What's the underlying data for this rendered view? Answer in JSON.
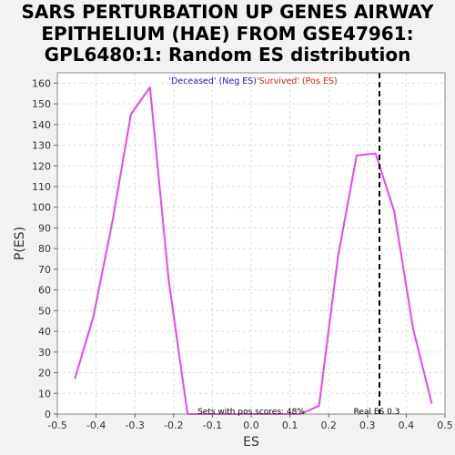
{
  "chart_data": {
    "type": "line",
    "title": [
      "SARS PERTURBATION UP GENES AIRWAY",
      "EPITHELIUM (HAE) FROM GSE47961:",
      "GPL6480:1: Random ES distribution"
    ],
    "xlabel": "ES",
    "ylabel": "P(ES)",
    "xlim": [
      -0.5,
      0.5
    ],
    "ylim": [
      0,
      165
    ],
    "xticks": [
      -0.5,
      -0.4,
      -0.3,
      -0.2,
      -0.1,
      0.0,
      0.1,
      0.2,
      0.3,
      0.4,
      0.5
    ],
    "xtick_labels": [
      "-0.5",
      "-0.4",
      "-0.3",
      "-0.2",
      "-0.1",
      "0.0",
      "0.1",
      "0.2",
      "0.3",
      "0.4",
      "0.5"
    ],
    "yticks": [
      0,
      10,
      20,
      30,
      40,
      50,
      60,
      70,
      80,
      90,
      100,
      110,
      120,
      130,
      140,
      150,
      160
    ],
    "ytick_labels": [
      "0",
      "10",
      "20",
      "30",
      "40",
      "50",
      "60",
      "70",
      "80",
      "90",
      "100",
      "110",
      "120",
      "130",
      "140",
      "150",
      "160"
    ],
    "grid": true,
    "series": [
      {
        "color": "#ee44ee",
        "x": [
          -0.455,
          -0.407,
          -0.358,
          -0.31,
          -0.261,
          -0.213,
          -0.164,
          0.127,
          0.175,
          0.224,
          0.272,
          0.321,
          0.369,
          0.418,
          0.466
        ],
        "y": [
          17,
          47,
          93,
          145,
          158,
          65,
          0,
          0,
          4,
          76,
          125,
          126,
          98,
          41,
          5
        ]
      }
    ],
    "real_es": 0.331,
    "legend": [
      {
        "text": "'Deceased' (Neg ES)",
        "color": "#2222bb"
      },
      {
        "text": "'Survived' (Pos ES)",
        "color": "#dd2222"
      }
    ],
    "annotations": {
      "pos_scores": "Sets with pos scores: 48%",
      "real_es": "Real ES 0.3"
    }
  }
}
